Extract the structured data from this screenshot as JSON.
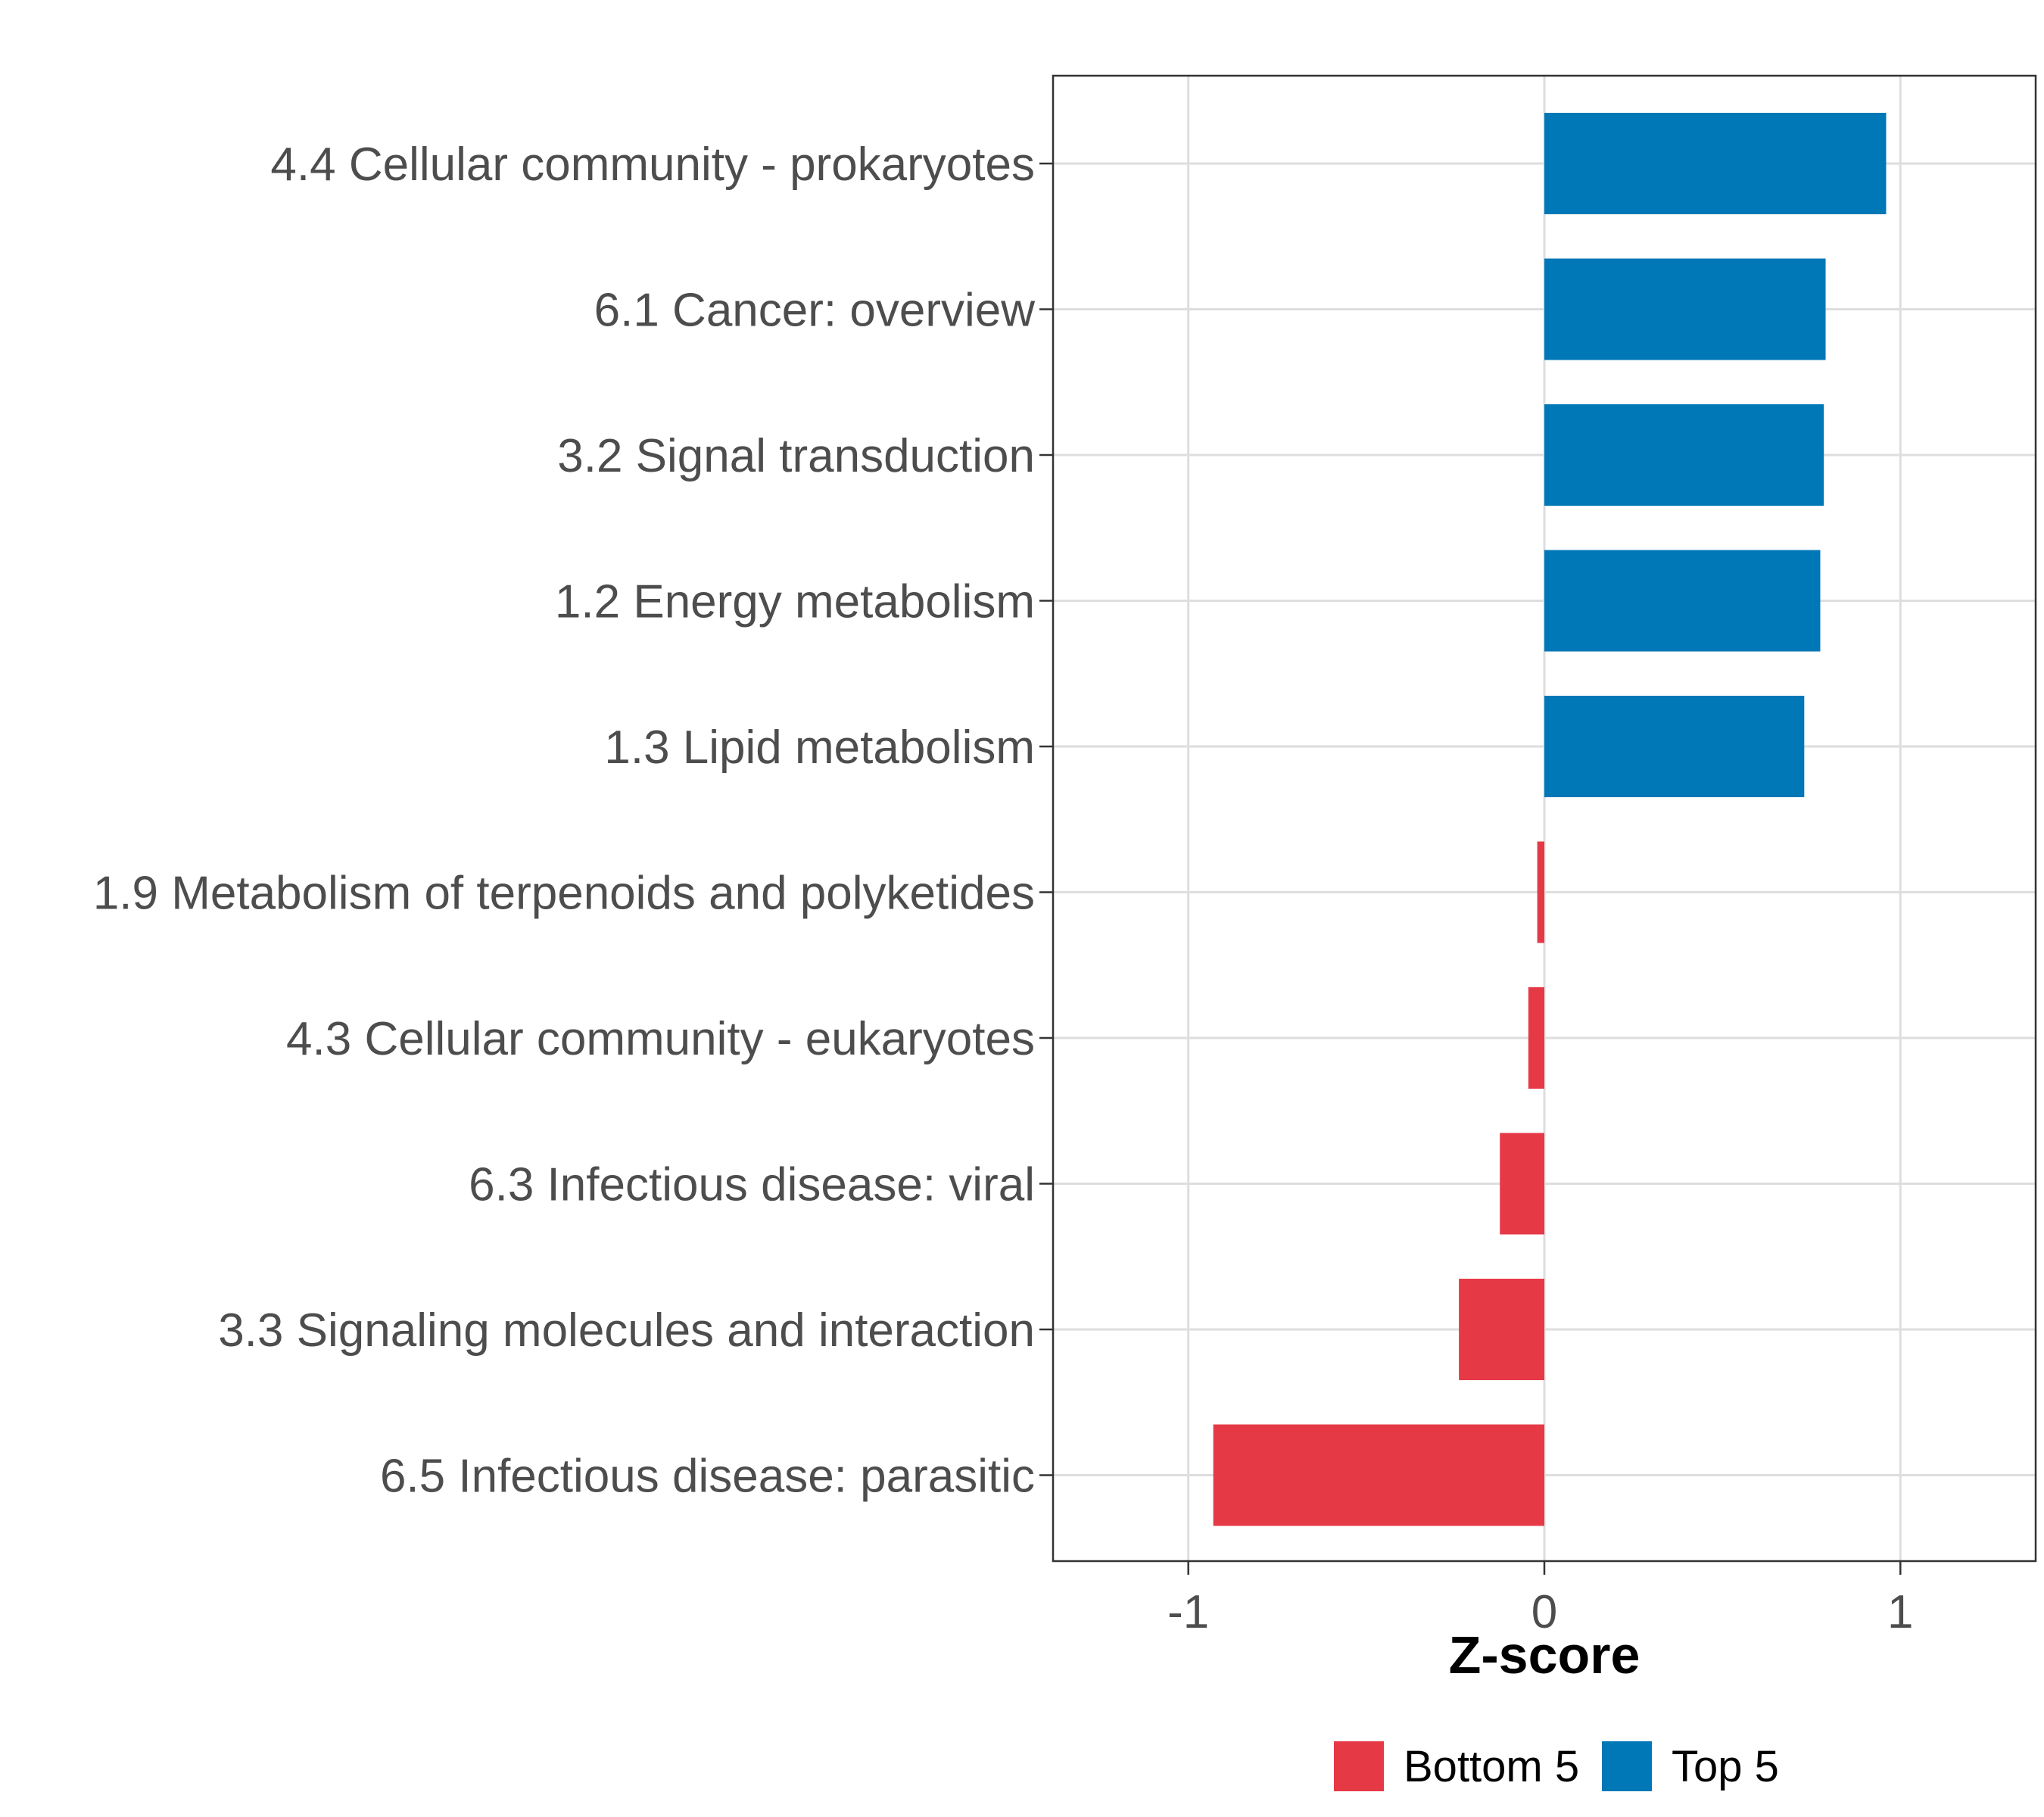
{
  "chart_data": {
    "type": "bar",
    "orientation": "horizontal",
    "categories": [
      "4.4 Cellular community - prokaryotes",
      "6.1 Cancer: overview",
      "3.2 Signal transduction",
      "1.2 Energy metabolism",
      "1.3 Lipid metabolism",
      "1.9 Metabolism of terpenoids and polyketides",
      "4.3 Cellular community - eukaryotes",
      "6.3 Infectious disease: viral",
      "3.3 Signaling molecules and interaction",
      "6.5 Infectious disease: parasitic"
    ],
    "values": [
      0.96,
      0.79,
      0.785,
      0.775,
      0.73,
      -0.02,
      -0.045,
      -0.125,
      -0.24,
      -0.93
    ],
    "groups": [
      "Top 5",
      "Top 5",
      "Top 5",
      "Top 5",
      "Top 5",
      "Bottom 5",
      "Bottom 5",
      "Bottom 5",
      "Bottom 5",
      "Bottom 5"
    ],
    "xlabel": "Z-score",
    "ylabel": "",
    "xlim": [
      -1.38,
      1.38
    ],
    "xticks": [
      -1,
      0,
      1
    ],
    "xtick_labels": [
      "-1",
      "0",
      "1"
    ],
    "grid": true,
    "legend": {
      "position": "bottom",
      "entries": [
        {
          "label": "Bottom 5",
          "color": "#E63946"
        },
        {
          "label": "Top 5",
          "color": "#0077B6"
        }
      ]
    },
    "colors": {
      "Top 5": "#0077B6",
      "Bottom 5": "#E63946"
    }
  }
}
